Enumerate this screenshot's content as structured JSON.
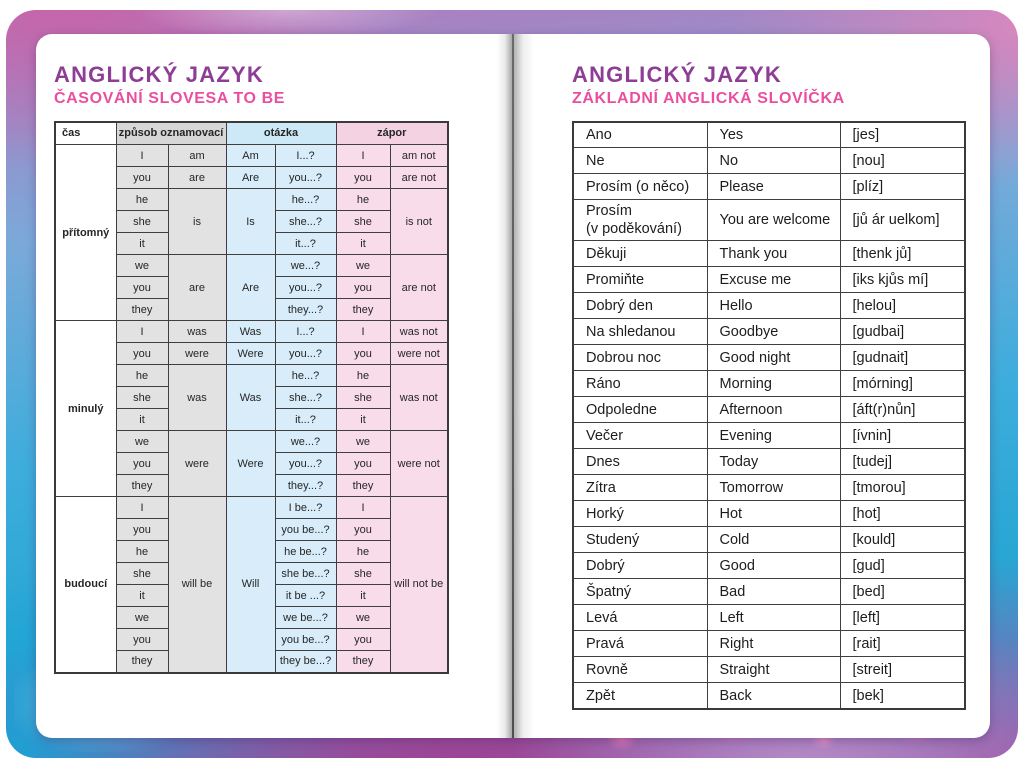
{
  "colors": {
    "title_purple": "#8e3d96",
    "subtitle_pink": "#ea4f9f",
    "header_gray": "#d7d7d7",
    "header_blue": "#cde8f6",
    "header_pink": "#f5d2e2",
    "cell_gray": "#e2e2e2",
    "cell_blue": "#d8edf9",
    "cell_pink": "#f8dcea"
  },
  "left_page": {
    "title": "ANGLICKÝ JAZYK",
    "subtitle": "ČASOVÁNÍ SLOVESA TO BE",
    "table": {
      "col_headers": {
        "cas": "čas",
        "oznamovaci": "způsob oznamovací",
        "otazka": "otázka",
        "zapor": "zápor"
      },
      "sections": [
        {
          "tense": "přítomný",
          "groups": [
            {
              "pronouns": [
                "I"
              ],
              "verb": "am",
              "q_aux": "Am",
              "questions": [
                "I...?"
              ],
              "neg_pronouns": [
                "I"
              ],
              "negative": "am not"
            },
            {
              "pronouns": [
                "you"
              ],
              "verb": "are",
              "q_aux": "Are",
              "questions": [
                "you...?"
              ],
              "neg_pronouns": [
                "you"
              ],
              "negative": "are not"
            },
            {
              "pronouns": [
                "he",
                "she",
                "it"
              ],
              "verb": "is",
              "q_aux": "Is",
              "questions": [
                "he...?",
                "she...?",
                "it...?"
              ],
              "neg_pronouns": [
                "he",
                "she",
                "it"
              ],
              "negative": "is not"
            },
            {
              "pronouns": [
                "we",
                "you",
                "they"
              ],
              "verb": "are",
              "q_aux": "Are",
              "questions": [
                "we...?",
                "you...?",
                "they...?"
              ],
              "neg_pronouns": [
                "we",
                "you",
                "they"
              ],
              "negative": "are not"
            }
          ]
        },
        {
          "tense": "minulý",
          "groups": [
            {
              "pronouns": [
                "I"
              ],
              "verb": "was",
              "q_aux": "Was",
              "questions": [
                "I...?"
              ],
              "neg_pronouns": [
                "I"
              ],
              "negative": "was not"
            },
            {
              "pronouns": [
                "you"
              ],
              "verb": "were",
              "q_aux": "Were",
              "questions": [
                "you...?"
              ],
              "neg_pronouns": [
                "you"
              ],
              "negative": "were not"
            },
            {
              "pronouns": [
                "he",
                "she",
                "it"
              ],
              "verb": "was",
              "q_aux": "Was",
              "questions": [
                "he...?",
                "she...?",
                "it...?"
              ],
              "neg_pronouns": [
                "he",
                "she",
                "it"
              ],
              "negative": "was not"
            },
            {
              "pronouns": [
                "we",
                "you",
                "they"
              ],
              "verb": "were",
              "q_aux": "Were",
              "questions": [
                "we...?",
                "you...?",
                "they...?"
              ],
              "neg_pronouns": [
                "we",
                "you",
                "they"
              ],
              "negative": "were not"
            }
          ]
        },
        {
          "tense": "budoucí",
          "groups": [
            {
              "pronouns": [
                "I",
                "you",
                "he",
                "she",
                "it",
                "we",
                "you",
                "they"
              ],
              "verb": "will be",
              "q_aux": "Will",
              "questions": [
                "I be...?",
                "you be...?",
                "he be...?",
                "she be...?",
                "it be ...?",
                "we be...?",
                "you be...?",
                "they be...?"
              ],
              "neg_pronouns": [
                "I",
                "you",
                "he",
                "she",
                "it",
                "we",
                "you",
                "they"
              ],
              "negative": "will not be"
            }
          ]
        }
      ]
    }
  },
  "right_page": {
    "title": "ANGLICKÝ JAZYK",
    "subtitle": "ZÁKLADNÍ ANGLICKÁ SLOVÍČKA",
    "vocabulary": [
      {
        "czech": "Ano",
        "english": "Yes",
        "pronunciation": "[jes]"
      },
      {
        "czech": "Ne",
        "english": "No",
        "pronunciation": "[nou]"
      },
      {
        "czech": "Prosím (o něco)",
        "english": "Please",
        "pronunciation": "[plíz]"
      },
      {
        "czech": "Prosím\n(v poděkování)",
        "english": "You are welcome",
        "pronunciation": "[jů ár uelkom]"
      },
      {
        "czech": "Děkuji",
        "english": "Thank you",
        "pronunciation": "[thenk jů]"
      },
      {
        "czech": "Promiňte",
        "english": "Excuse me",
        "pronunciation": "[iks kjůs mí]"
      },
      {
        "czech": "Dobrý den",
        "english": "Hello",
        "pronunciation": "[helou]"
      },
      {
        "czech": "Na shledanou",
        "english": "Goodbye",
        "pronunciation": "[gudbai]"
      },
      {
        "czech": "Dobrou noc",
        "english": "Good night",
        "pronunciation": "[gudnait]"
      },
      {
        "czech": "Ráno",
        "english": "Morning",
        "pronunciation": "[mórning]"
      },
      {
        "czech": "Odpoledne",
        "english": "Afternoon",
        "pronunciation": "[áft(r)nůn]"
      },
      {
        "czech": "Večer",
        "english": "Evening",
        "pronunciation": "[ívnin]"
      },
      {
        "czech": "Dnes",
        "english": "Today",
        "pronunciation": "[tudej]"
      },
      {
        "czech": "Zítra",
        "english": "Tomorrow",
        "pronunciation": "[tmorou]"
      },
      {
        "czech": "Horký",
        "english": "Hot",
        "pronunciation": "[hot]"
      },
      {
        "czech": "Studený",
        "english": "Cold",
        "pronunciation": "[kould]"
      },
      {
        "czech": "Dobrý",
        "english": "Good",
        "pronunciation": "[gud]"
      },
      {
        "czech": "Špatný",
        "english": "Bad",
        "pronunciation": "[bed]"
      },
      {
        "czech": "Levá",
        "english": "Left",
        "pronunciation": "[left]"
      },
      {
        "czech": "Pravá",
        "english": "Right",
        "pronunciation": "[rait]"
      },
      {
        "czech": "Rovně",
        "english": "Straight",
        "pronunciation": "[streit]"
      },
      {
        "czech": "Zpět",
        "english": "Back",
        "pronunciation": "[bek]"
      }
    ]
  }
}
